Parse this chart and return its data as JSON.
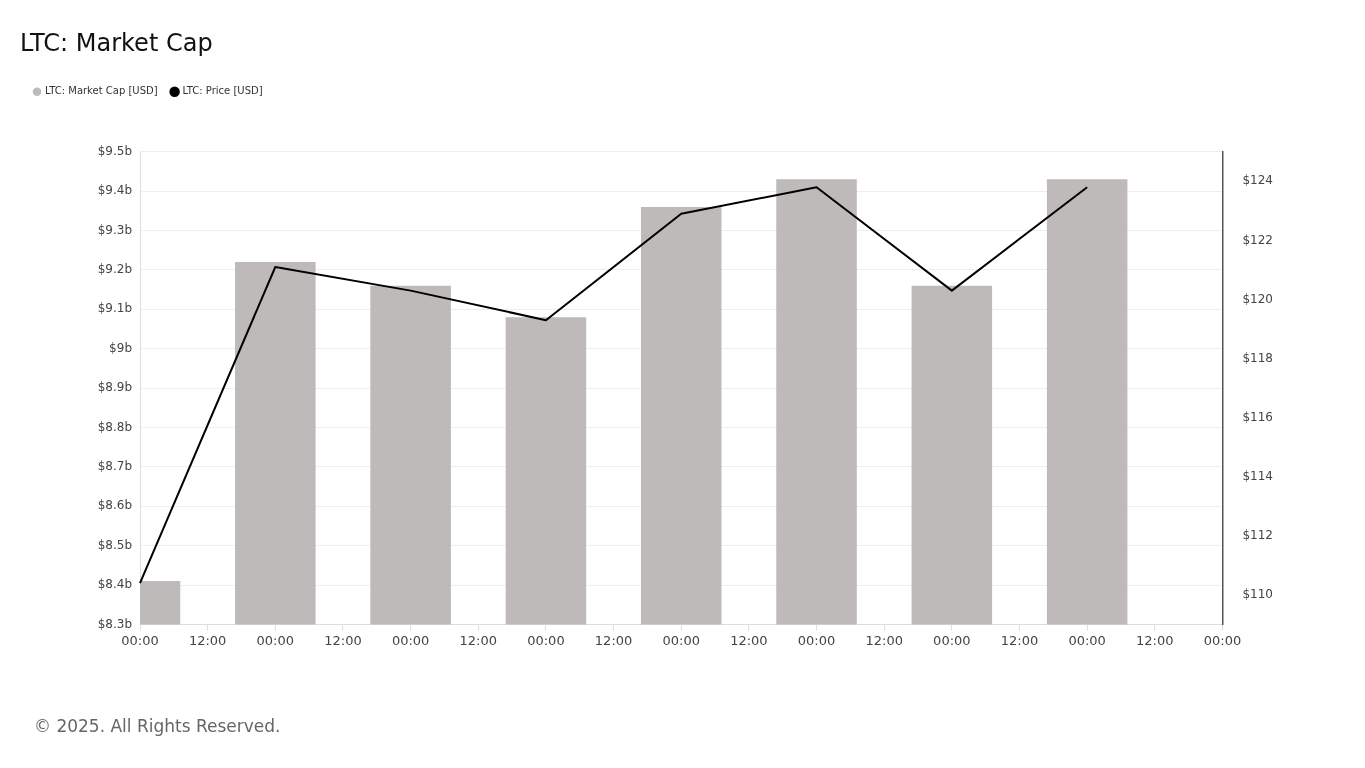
{
  "chart_data": {
    "type": "bar",
    "title": "LTC: Market Cap",
    "categories": [
      "00:00",
      "12:00",
      "00:00",
      "12:00",
      "00:00",
      "12:00",
      "00:00",
      "12:00",
      "00:00",
      "12:00",
      "00:00",
      "12:00",
      "00:00",
      "12:00",
      "00:00",
      "12:00",
      "00:00"
    ],
    "series": [
      {
        "name": "LTC: Market Cap [USD]",
        "color": "#bdbab9",
        "values": [
          8.41,
          null,
          9.22,
          null,
          9.16,
          null,
          9.08,
          null,
          9.36,
          null,
          9.43,
          null,
          9.16,
          null,
          9.43,
          null,
          null
        ]
      },
      {
        "name": "LTC: Price [USD]",
        "type": "line",
        "axis": "y2",
        "color": "#000000",
        "values": [
          110.4,
          null,
          121.1,
          null,
          120.3,
          null,
          119.3,
          null,
          122.9,
          null,
          123.8,
          null,
          120.3,
          null,
          123.8,
          null,
          null
        ]
      }
    ],
    "ylim": [
      8.3,
      9.5
    ],
    "yticks": [
      {
        "value": 8.3,
        "label": "$8.3b"
      },
      {
        "value": 8.4,
        "label": "$8.4b"
      },
      {
        "value": 8.5,
        "label": "$8.5b"
      },
      {
        "value": 8.6,
        "label": "$8.6b"
      },
      {
        "value": 8.7,
        "label": "$8.7b"
      },
      {
        "value": 8.8,
        "label": "$8.8b"
      },
      {
        "value": 8.9,
        "label": "$8.9b"
      },
      {
        "value": 9.0,
        "label": "$9b"
      },
      {
        "value": 9.1,
        "label": "$9.1b"
      },
      {
        "value": 9.2,
        "label": "$9.2b"
      },
      {
        "value": 9.3,
        "label": "$9.3b"
      },
      {
        "value": 9.4,
        "label": "$9.4b"
      },
      {
        "value": 9.5,
        "label": "$9.5b"
      }
    ],
    "y2lim": [
      109,
      125
    ],
    "y2ticks": [
      {
        "value": 110,
        "label": "$110"
      },
      {
        "value": 112,
        "label": "$112"
      },
      {
        "value": 114,
        "label": "$114"
      },
      {
        "value": 116,
        "label": "$116"
      },
      {
        "value": 118,
        "label": "$118"
      },
      {
        "value": 120,
        "label": "$120"
      },
      {
        "value": 122,
        "label": "$122"
      },
      {
        "value": 124,
        "label": "$124"
      }
    ],
    "grid": "y",
    "legend": "top left",
    "marker": "none",
    "line_style": "solid",
    "annotations": [
      "© 2025. All Rights Reserved."
    ]
  }
}
